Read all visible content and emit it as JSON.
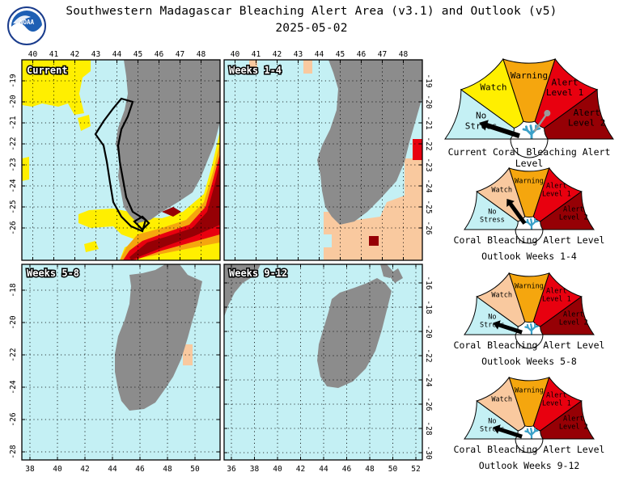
{
  "header": {
    "title": "Southwestern Madagascar Bleaching Alert Area (v3.1) and Outlook (v5)",
    "date": "2025-05-02",
    "logo_text": "NOAA"
  },
  "panels": {
    "current": {
      "label": "Current"
    },
    "weeks_1_4": {
      "label": "Weeks 1-4"
    },
    "weeks_5_8": {
      "label": "Weeks 5-8"
    },
    "weeks_9_12": {
      "label": "Weeks 9-12"
    }
  },
  "axes": {
    "top_lon_ticks": [
      "40",
      "41",
      "42",
      "43",
      "44",
      "45",
      "46",
      "47",
      "48"
    ],
    "upper_lat_ticks_left": [
      "-19",
      "-20",
      "-21",
      "-22",
      "-23",
      "-24",
      "-25",
      "-26"
    ],
    "upper_lat_ticks_right": [
      "-19",
      "-20",
      "-21",
      "-22",
      "-23",
      "-24",
      "-25",
      "-26"
    ],
    "lower_lat_ticks_left": [
      "-18",
      "-20",
      "-22",
      "-24",
      "-26",
      "-28"
    ],
    "lower_lat_ticks_right": [
      "-16",
      "-18",
      "-20",
      "-22",
      "-24",
      "-26",
      "-28",
      "-30"
    ],
    "bottom_left_lon_ticks": [
      "38",
      "40",
      "42",
      "44",
      "46",
      "48",
      "50"
    ],
    "bottom_right_lon_ticks": [
      "36",
      "38",
      "40",
      "42",
      "44",
      "46",
      "48",
      "50",
      "52"
    ]
  },
  "gauge_segments": [
    "No Stress",
    "Watch",
    "Warning",
    "Alert Level 1",
    "Alert Level 2"
  ],
  "gauges": [
    {
      "caption_line1": "Current Coral Bleaching Alert Level",
      "caption_line2": "",
      "level": "No Stress"
    },
    {
      "caption_line1": "Coral Bleaching Alert Level",
      "caption_line2": "Outlook Weeks 1-4",
      "level": "Watch"
    },
    {
      "caption_line1": "Coral Bleaching Alert Level",
      "caption_line2": "Outlook Weeks 5-8",
      "level": "No Stress"
    },
    {
      "caption_line1": "Coral Bleaching Alert Level",
      "caption_line2": "Outlook Weeks 9-12",
      "level": "No Stress"
    }
  ],
  "colors": {
    "ocean": "#c4f0f4",
    "land": "#8c8c8c",
    "watch_current": "#ffef00",
    "watch_outlook": "#f9c99f",
    "warning": "#f5a60e",
    "alert1": "#e8000f",
    "alert2": "#960005",
    "no_stress": "#c4f0f4",
    "coral_icon": "#3aa0c8"
  }
}
